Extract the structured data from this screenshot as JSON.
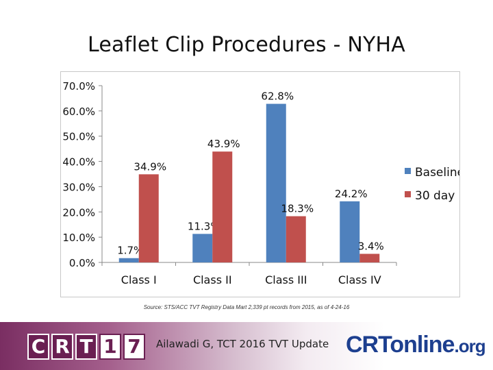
{
  "slide": {
    "title": "Leaflet Clip Procedures - NYHA",
    "source": "Source: STS/ACC TVT Registry Data Mart 2,339 pt records from 2015, as of 4-24-16",
    "footer_text": "Ailawadi G, TCT 2016 TVT Update",
    "logo_left": [
      "C",
      "R",
      "T",
      "1",
      "7"
    ],
    "logo_right": "CRTonline",
    "logo_right_suffix": ".org"
  },
  "chart_data": {
    "type": "bar",
    "title": "",
    "xlabel": "",
    "ylabel": "",
    "categories": [
      "Class I",
      "Class II",
      "Class III",
      "Class IV"
    ],
    "series": [
      {
        "name": "Baseline",
        "color": "#4f81bd",
        "values": [
          1.7,
          11.3,
          62.8,
          24.2
        ],
        "labels": [
          "1.7%",
          "11.3%",
          "62.8%",
          "24.2%"
        ]
      },
      {
        "name": "30 day",
        "color": "#c0504d",
        "values": [
          34.9,
          43.9,
          18.3,
          3.4
        ],
        "labels": [
          "34.9%",
          "43.9%",
          "18.3%",
          "3.4%"
        ]
      }
    ],
    "ylim": [
      0,
      70
    ],
    "yticks": [
      0,
      10,
      20,
      30,
      40,
      50,
      60,
      70
    ],
    "ytick_labels": [
      "0.0%",
      "10.0%",
      "20.0%",
      "30.0%",
      "40.0%",
      "50.0%",
      "60.0%",
      "70.0%"
    ],
    "grid": false,
    "legend_position": "right"
  }
}
